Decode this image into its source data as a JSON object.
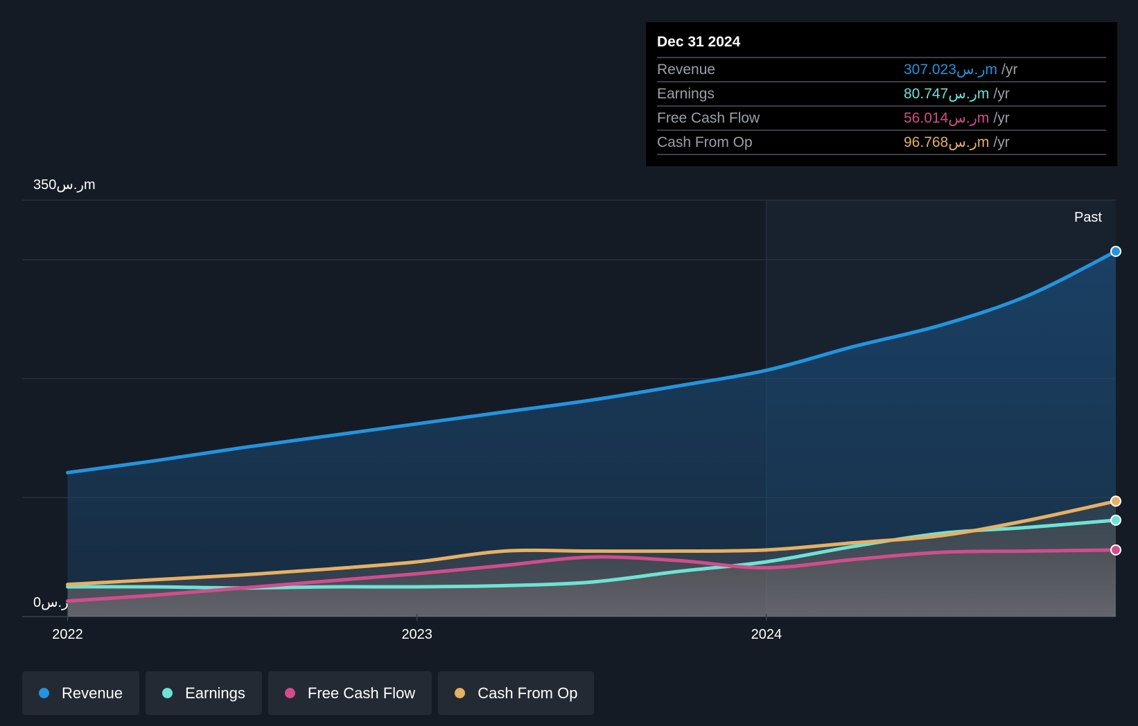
{
  "chart_data": {
    "type": "line",
    "x": [
      2022.0,
      2022.25,
      2022.5,
      2022.75,
      2023.0,
      2023.25,
      2023.5,
      2023.75,
      2024.0,
      2024.25,
      2024.5,
      2024.75,
      2025.0
    ],
    "series": [
      {
        "name": "Revenue",
        "color": "#2394df",
        "values": [
          121,
          131,
          142,
          152,
          162,
          172,
          182,
          194,
          207,
          227,
          245,
          270,
          307
        ]
      },
      {
        "name": "Earnings",
        "color": "#6ee2d5",
        "values": [
          25,
          25,
          24,
          25,
          25,
          26,
          29,
          38,
          46,
          59,
          70,
          75,
          81
        ]
      },
      {
        "name": "Free Cash Flow",
        "color": "#d14d8c",
        "values": [
          13,
          18,
          24,
          30,
          36,
          43,
          50,
          47,
          41,
          48,
          54,
          55,
          56
        ]
      },
      {
        "name": "Cash From Op",
        "color": "#e7b062",
        "values": [
          27,
          31,
          35,
          40,
          46,
          55,
          55,
          55,
          56,
          62,
          68,
          81,
          97
        ]
      }
    ],
    "x_ticks": [
      {
        "label": "2022",
        "x": 2022.0
      },
      {
        "label": "2023",
        "x": 2023.0
      },
      {
        "label": "2024",
        "x": 2024.0
      }
    ],
    "y_ticks": [
      {
        "label": "350ر.سm",
        "value": 350
      },
      {
        "label": "0ر.س",
        "value": 0
      }
    ],
    "ylim": [
      0,
      350
    ],
    "xlim": [
      2021.87,
      2025.0
    ],
    "past_start": 2024.0,
    "past_label": "Past",
    "grid": true,
    "legend_position": "bottom-left"
  },
  "tooltip": {
    "date": "Dec 31 2024",
    "rows": [
      {
        "label": "Revenue",
        "value": "307.023ر.سm",
        "unit": "/yr",
        "color": "#2394df"
      },
      {
        "label": "Earnings",
        "value": "80.747ر.سm",
        "unit": "/yr",
        "color": "#6ee2d5"
      },
      {
        "label": "Free Cash Flow",
        "value": "56.014ر.سm",
        "unit": "/yr",
        "color": "#d14d8c"
      },
      {
        "label": "Cash From Op",
        "value": "96.768ر.سm",
        "unit": "/yr",
        "color": "#e7b062"
      }
    ]
  },
  "legend": [
    {
      "label": "Revenue",
      "color": "#2394df"
    },
    {
      "label": "Earnings",
      "color": "#6ee2d5"
    },
    {
      "label": "Free Cash Flow",
      "color": "#d14d8c"
    },
    {
      "label": "Cash From Op",
      "color": "#e7b062"
    }
  ]
}
